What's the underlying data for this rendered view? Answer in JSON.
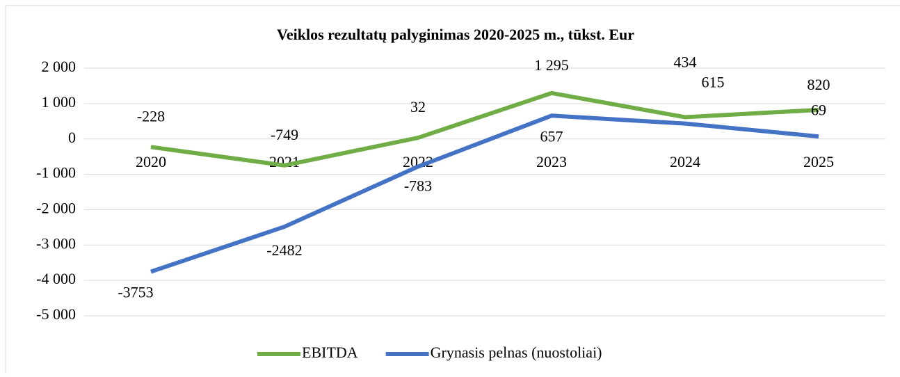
{
  "chart_data": {
    "type": "line",
    "title": "Veiklos rezultatų palyginimas 2020-2025 m., tūkst. Eur",
    "categories": [
      "2020",
      "2021",
      "2022",
      "2023",
      "2024",
      "2025"
    ],
    "series": [
      {
        "name": "EBITDA",
        "color": "#70ad47",
        "values": [
          -228,
          -749,
          32,
          1295,
          615,
          820
        ],
        "value_labels": [
          "-228",
          "-749",
          "32",
          "1 295",
          "615",
          "820"
        ]
      },
      {
        "name": "Grynasis pelnas (nuostoliai)",
        "color": "#4472c4",
        "values": [
          -3753,
          -2482,
          -783,
          657,
          434,
          69
        ]
      }
    ],
    "ylim": [
      -5000,
      2000
    ],
    "yticks": [
      {
        "value": -5000,
        "label": "-5 000"
      },
      {
        "value": -4000,
        "label": "-4 000"
      },
      {
        "value": -3000,
        "label": "-3 000"
      },
      {
        "value": -2000,
        "label": "-2 000"
      },
      {
        "value": -1000,
        "label": "-1 000"
      },
      0,
      {
        "value": 1000,
        "label": "1 000"
      },
      {
        "value": 2000,
        "label": "2 000"
      }
    ],
    "grid": true,
    "legend": "bottom"
  }
}
